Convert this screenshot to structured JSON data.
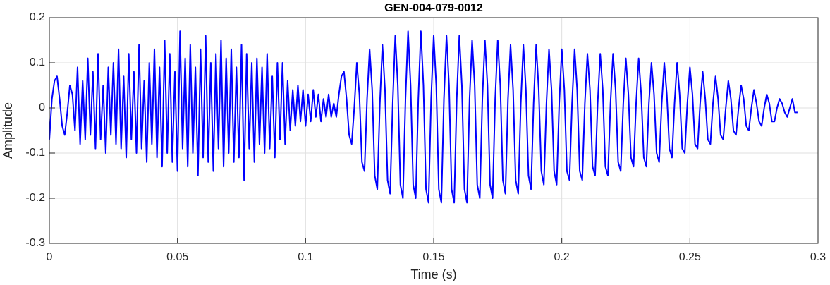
{
  "chart_data": {
    "type": "line",
    "title": "GEN-004-079-0012",
    "x_label": "Time (s)",
    "y_label": "Amplitude",
    "color": "#0000ff",
    "grid": true,
    "xlim": [
      0,
      0.3
    ],
    "xticks": [
      0,
      0.05,
      0.1,
      0.15,
      0.2,
      0.25,
      0.3
    ],
    "ylim": [
      -0.3,
      0.2
    ],
    "yticks": [
      -0.3,
      -0.2,
      -0.1,
      0,
      0.1,
      0.2
    ],
    "x": [
      0,
      0.001,
      0.002,
      0.003,
      0.004,
      0.005,
      0.006,
      0.007,
      0.008,
      0.009,
      0.01,
      0.011,
      0.012,
      0.013,
      0.014,
      0.015,
      0.016,
      0.017,
      0.018,
      0.019,
      0.02,
      0.021,
      0.022,
      0.023,
      0.024,
      0.025,
      0.026,
      0.027,
      0.028,
      0.029,
      0.03,
      0.031,
      0.032,
      0.033,
      0.034,
      0.035,
      0.036,
      0.037,
      0.038,
      0.039,
      0.04,
      0.041,
      0.042,
      0.043,
      0.044,
      0.045,
      0.046,
      0.047,
      0.048,
      0.049,
      0.05,
      0.051,
      0.052,
      0.053,
      0.054,
      0.055,
      0.056,
      0.057,
      0.058,
      0.059,
      0.06,
      0.061,
      0.062,
      0.063,
      0.064,
      0.065,
      0.066,
      0.067,
      0.068,
      0.069,
      0.07,
      0.071,
      0.072,
      0.073,
      0.074,
      0.075,
      0.076,
      0.077,
      0.078,
      0.079,
      0.08,
      0.081,
      0.082,
      0.083,
      0.084,
      0.085,
      0.086,
      0.087,
      0.088,
      0.089,
      0.09,
      0.091,
      0.092,
      0.093,
      0.094,
      0.095,
      0.096,
      0.097,
      0.098,
      0.099,
      0.1,
      0.101,
      0.102,
      0.103,
      0.104,
      0.105,
      0.106,
      0.107,
      0.108,
      0.109,
      0.11,
      0.111,
      0.112,
      0.113,
      0.114,
      0.115,
      0.116,
      0.117,
      0.118,
      0.119,
      0.12,
      0.121,
      0.122,
      0.123,
      0.124,
      0.125,
      0.126,
      0.127,
      0.128,
      0.129,
      0.13,
      0.131,
      0.132,
      0.133,
      0.134,
      0.135,
      0.136,
      0.137,
      0.138,
      0.139,
      0.14,
      0.141,
      0.142,
      0.143,
      0.144,
      0.145,
      0.146,
      0.147,
      0.148,
      0.149,
      0.15,
      0.151,
      0.152,
      0.153,
      0.154,
      0.155,
      0.156,
      0.157,
      0.158,
      0.159,
      0.16,
      0.161,
      0.162,
      0.163,
      0.164,
      0.165,
      0.166,
      0.167,
      0.168,
      0.169,
      0.17,
      0.171,
      0.172,
      0.173,
      0.174,
      0.175,
      0.176,
      0.177,
      0.178,
      0.179,
      0.18,
      0.181,
      0.182,
      0.183,
      0.184,
      0.185,
      0.186,
      0.187,
      0.188,
      0.189,
      0.19,
      0.191,
      0.192,
      0.193,
      0.194,
      0.195,
      0.196,
      0.197,
      0.198,
      0.199,
      0.2,
      0.201,
      0.202,
      0.203,
      0.204,
      0.205,
      0.206,
      0.207,
      0.208,
      0.209,
      0.21,
      0.211,
      0.212,
      0.213,
      0.214,
      0.215,
      0.216,
      0.217,
      0.218,
      0.219,
      0.22,
      0.221,
      0.222,
      0.223,
      0.224,
      0.225,
      0.226,
      0.227,
      0.228,
      0.229,
      0.23,
      0.231,
      0.232,
      0.233,
      0.234,
      0.235,
      0.236,
      0.237,
      0.238,
      0.239,
      0.24,
      0.241,
      0.242,
      0.243,
      0.244,
      0.245,
      0.246,
      0.247,
      0.248,
      0.249,
      0.25,
      0.251,
      0.252,
      0.253,
      0.254,
      0.255,
      0.256,
      0.257,
      0.258,
      0.259,
      0.26,
      0.261,
      0.262,
      0.263,
      0.264,
      0.265,
      0.266,
      0.267,
      0.268,
      0.269,
      0.27,
      0.271,
      0.272,
      0.273,
      0.274,
      0.275,
      0.276,
      0.277,
      0.278,
      0.279,
      0.28,
      0.281,
      0.282,
      0.283,
      0.284,
      0.285,
      0.286,
      0.287,
      0.288,
      0.289,
      0.29,
      0.291,
      0.292
    ],
    "values": [
      -0.07,
      0.02,
      0.06,
      0.07,
      0.02,
      -0.04,
      -0.06,
      -0.01,
      0.05,
      0.03,
      -0.05,
      0.09,
      -0.08,
      0.06,
      -0.07,
      0.11,
      -0.06,
      0.08,
      -0.09,
      0.12,
      -0.07,
      0.05,
      -0.1,
      0.09,
      -0.06,
      0.1,
      -0.08,
      0.13,
      -0.09,
      0.07,
      -0.11,
      0.12,
      -0.07,
      0.08,
      -0.1,
      0.14,
      -0.09,
      0.06,
      -0.12,
      0.1,
      -0.08,
      0.13,
      -0.11,
      0.09,
      -0.13,
      0.15,
      -0.1,
      0.12,
      -0.12,
      0.08,
      -0.14,
      0.17,
      -0.09,
      0.11,
      -0.13,
      0.14,
      -0.1,
      0.09,
      -0.15,
      0.13,
      -0.11,
      0.16,
      -0.12,
      0.1,
      -0.14,
      0.12,
      -0.09,
      0.15,
      -0.13,
      0.11,
      -0.1,
      0.13,
      -0.12,
      0.09,
      -0.11,
      0.14,
      -0.16,
      0.12,
      -0.09,
      0.1,
      -0.12,
      0.11,
      -0.08,
      0.09,
      -0.1,
      0.12,
      -0.09,
      0.07,
      -0.11,
      0.1,
      -0.07,
      0.1,
      -0.08,
      0.06,
      -0.05,
      0.04,
      -0.04,
      0.05,
      -0.03,
      0.04,
      -0.04,
      0.03,
      -0.03,
      0.04,
      -0.02,
      0.03,
      -0.03,
      0.02,
      -0.02,
      0.03,
      -0.02,
      0.01,
      -0.02,
      0.03,
      0.07,
      0.08,
      0.02,
      -0.06,
      -0.08,
      0,
      0.1,
      0.03,
      -0.12,
      -0.14,
      0.02,
      0.13,
      0.04,
      -0.15,
      -0.18,
      0.01,
      0.14,
      0.04,
      -0.16,
      -0.19,
      0.01,
      0.16,
      0.05,
      -0.17,
      -0.2,
      0.02,
      0.17,
      0.05,
      -0.17,
      -0.2,
      0.02,
      0.17,
      0.05,
      -0.18,
      -0.21,
      0.02,
      0.16,
      0.05,
      -0.18,
      -0.21,
      0.02,
      0.16,
      0.05,
      -0.18,
      -0.21,
      0.02,
      0.16,
      0.05,
      -0.18,
      -0.21,
      0.02,
      0.15,
      0.05,
      -0.17,
      -0.2,
      0.02,
      0.15,
      0.05,
      -0.17,
      -0.2,
      0.02,
      0.15,
      0.05,
      -0.16,
      -0.19,
      0.02,
      0.14,
      0.04,
      -0.16,
      -0.19,
      0.01,
      0.14,
      0.04,
      -0.15,
      -0.18,
      0.01,
      0.14,
      0.04,
      -0.14,
      -0.17,
      0.01,
      0.13,
      0.04,
      -0.14,
      -0.17,
      0.01,
      0.13,
      0.04,
      -0.14,
      -0.16,
      0.01,
      0.13,
      0.04,
      -0.14,
      -0.16,
      0.01,
      0.12,
      0.04,
      -0.13,
      -0.15,
      0.01,
      0.12,
      0.04,
      -0.13,
      -0.15,
      0.01,
      0.12,
      0.04,
      -0.12,
      -0.14,
      0.01,
      0.11,
      0.03,
      -0.11,
      -0.13,
      0.01,
      0.11,
      0.03,
      -0.11,
      -0.13,
      0.01,
      0.1,
      0.03,
      -0.1,
      -0.12,
      0.01,
      0.1,
      0.03,
      -0.09,
      -0.11,
      0.01,
      0.1,
      0.03,
      -0.09,
      -0.1,
      0.01,
      0.09,
      0.03,
      -0.08,
      -0.09,
      0.01,
      0.08,
      0.02,
      -0.07,
      -0.08,
      0.01,
      0.07,
      0.02,
      -0.06,
      -0.07,
      0,
      0.06,
      0.02,
      -0.05,
      -0.06,
      0,
      0.05,
      0.02,
      -0.04,
      -0.05,
      0,
      0.04,
      0.01,
      -0.03,
      -0.04,
      0,
      0.03,
      0.01,
      -0.03,
      -0.03,
      0,
      0.02,
      0.01,
      -0.01,
      -0.02,
      0,
      0.02,
      -0.01,
      -0.01
    ]
  }
}
